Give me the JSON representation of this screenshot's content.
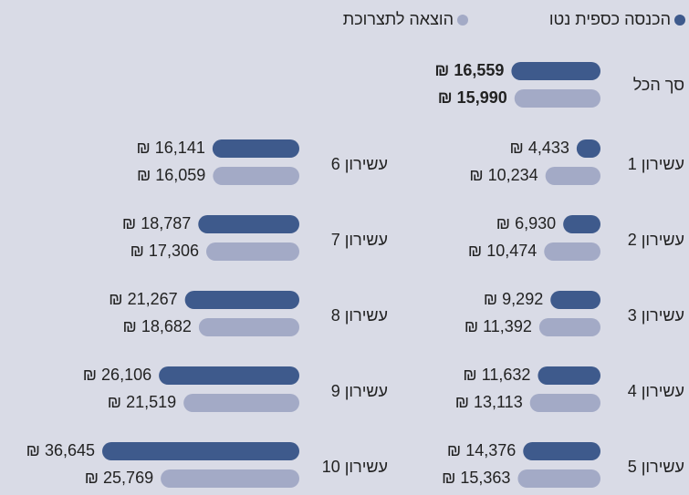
{
  "chart_data": {
    "type": "bar",
    "orientation": "horizontal",
    "categories": [
      "סך הכל",
      "עשירון 1",
      "עשירון 2",
      "עשירון 3",
      "עשירון 4",
      "עשירון 5",
      "עשירון 6",
      "עשירון 7",
      "עשירון 8",
      "עשירון 9",
      "עשירון 10"
    ],
    "series": [
      {
        "name": "הכנסה כספית נטו",
        "color": "#3e5a8c",
        "values": [
          16559,
          4433,
          6930,
          9292,
          11632,
          14376,
          16141,
          18787,
          21267,
          26106,
          36645
        ],
        "value_labels": [
          "16,559 ₪",
          "4,433 ₪",
          "6,930 ₪",
          "9,292 ₪",
          "11,632 ₪",
          "14,376 ₪",
          "16,141 ₪",
          "18,787 ₪",
          "21,267 ₪",
          "26,106 ₪",
          "36,645 ₪"
        ]
      },
      {
        "name": "הוצאה לתצרוכת",
        "color": "#a3aac6",
        "values": [
          15990,
          10234,
          10474,
          11392,
          13113,
          15363,
          16059,
          17306,
          18682,
          21519,
          25769
        ],
        "value_labels": [
          "15,990 ₪",
          "10,234 ₪",
          "10,474 ₪",
          "11,392 ₪",
          "13,113 ₪",
          "15,363 ₪",
          "16,059 ₪",
          "17,306 ₪",
          "18,682 ₪",
          "21,519 ₪",
          "25,769 ₪"
        ]
      }
    ]
  }
}
